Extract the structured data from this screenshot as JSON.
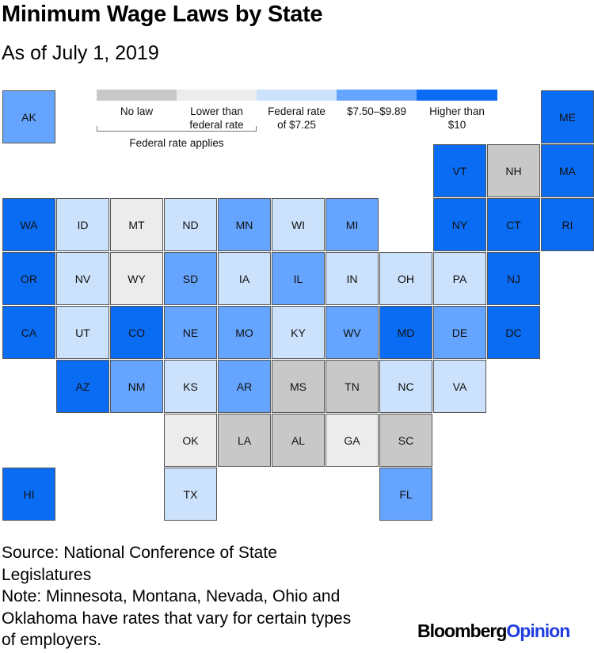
{
  "title": "Minimum Wage Laws by State",
  "subtitle": "As of July 1, 2019",
  "colors": {
    "no_law": "#c8c8c8",
    "lower": "#ececec",
    "federal": "#cce1fb",
    "mid": "#66a5ff",
    "high": "#0a6cf3"
  },
  "chart_data": {
    "type": "tile-map",
    "title": "Minimum Wage Laws by State",
    "subtitle": "As of July 1, 2019",
    "legend": [
      {
        "key": "no_law",
        "label": "No law"
      },
      {
        "key": "lower",
        "label": "Lower than federal rate"
      },
      {
        "key": "federal",
        "label": "Federal rate of $7.25"
      },
      {
        "key": "mid",
        "label": "$7.50–$9.89"
      },
      {
        "key": "high",
        "label": "Higher than $10"
      }
    ],
    "legend_group_label": "Federal rate applies",
    "states": [
      {
        "abbr": "AK",
        "row": 0,
        "col": 0,
        "cat": "mid"
      },
      {
        "abbr": "ME",
        "row": 0,
        "col": 10,
        "cat": "high"
      },
      {
        "abbr": "VT",
        "row": 1,
        "col": 8,
        "cat": "high"
      },
      {
        "abbr": "NH",
        "row": 1,
        "col": 9,
        "cat": "no_law"
      },
      {
        "abbr": "MA",
        "row": 1,
        "col": 10,
        "cat": "high"
      },
      {
        "abbr": "WA",
        "row": 2,
        "col": 0,
        "cat": "high"
      },
      {
        "abbr": "ID",
        "row": 2,
        "col": 1,
        "cat": "federal"
      },
      {
        "abbr": "MT",
        "row": 2,
        "col": 2,
        "cat": "lower"
      },
      {
        "abbr": "ND",
        "row": 2,
        "col": 3,
        "cat": "federal"
      },
      {
        "abbr": "MN",
        "row": 2,
        "col": 4,
        "cat": "mid"
      },
      {
        "abbr": "WI",
        "row": 2,
        "col": 5,
        "cat": "federal"
      },
      {
        "abbr": "MI",
        "row": 2,
        "col": 6,
        "cat": "mid"
      },
      {
        "abbr": "NY",
        "row": 2,
        "col": 8,
        "cat": "high"
      },
      {
        "abbr": "CT",
        "row": 2,
        "col": 9,
        "cat": "high"
      },
      {
        "abbr": "RI",
        "row": 2,
        "col": 10,
        "cat": "high"
      },
      {
        "abbr": "OR",
        "row": 3,
        "col": 0,
        "cat": "high"
      },
      {
        "abbr": "NV",
        "row": 3,
        "col": 1,
        "cat": "federal"
      },
      {
        "abbr": "WY",
        "row": 3,
        "col": 2,
        "cat": "lower"
      },
      {
        "abbr": "SD",
        "row": 3,
        "col": 3,
        "cat": "mid"
      },
      {
        "abbr": "IA",
        "row": 3,
        "col": 4,
        "cat": "federal"
      },
      {
        "abbr": "IL",
        "row": 3,
        "col": 5,
        "cat": "mid"
      },
      {
        "abbr": "IN",
        "row": 3,
        "col": 6,
        "cat": "federal"
      },
      {
        "abbr": "OH",
        "row": 3,
        "col": 7,
        "cat": "federal"
      },
      {
        "abbr": "PA",
        "row": 3,
        "col": 8,
        "cat": "federal"
      },
      {
        "abbr": "NJ",
        "row": 3,
        "col": 9,
        "cat": "high"
      },
      {
        "abbr": "CA",
        "row": 4,
        "col": 0,
        "cat": "high"
      },
      {
        "abbr": "UT",
        "row": 4,
        "col": 1,
        "cat": "federal"
      },
      {
        "abbr": "CO",
        "row": 4,
        "col": 2,
        "cat": "high"
      },
      {
        "abbr": "NE",
        "row": 4,
        "col": 3,
        "cat": "mid"
      },
      {
        "abbr": "MO",
        "row": 4,
        "col": 4,
        "cat": "mid"
      },
      {
        "abbr": "KY",
        "row": 4,
        "col": 5,
        "cat": "federal"
      },
      {
        "abbr": "WV",
        "row": 4,
        "col": 6,
        "cat": "mid"
      },
      {
        "abbr": "MD",
        "row": 4,
        "col": 7,
        "cat": "high"
      },
      {
        "abbr": "DE",
        "row": 4,
        "col": 8,
        "cat": "mid"
      },
      {
        "abbr": "DC",
        "row": 4,
        "col": 9,
        "cat": "high"
      },
      {
        "abbr": "AZ",
        "row": 5,
        "col": 1,
        "cat": "high"
      },
      {
        "abbr": "NM",
        "row": 5,
        "col": 2,
        "cat": "mid"
      },
      {
        "abbr": "KS",
        "row": 5,
        "col": 3,
        "cat": "federal"
      },
      {
        "abbr": "AR",
        "row": 5,
        "col": 4,
        "cat": "mid"
      },
      {
        "abbr": "MS",
        "row": 5,
        "col": 5,
        "cat": "no_law"
      },
      {
        "abbr": "TN",
        "row": 5,
        "col": 6,
        "cat": "no_law"
      },
      {
        "abbr": "NC",
        "row": 5,
        "col": 7,
        "cat": "federal"
      },
      {
        "abbr": "VA",
        "row": 5,
        "col": 8,
        "cat": "federal"
      },
      {
        "abbr": "OK",
        "row": 6,
        "col": 3,
        "cat": "lower"
      },
      {
        "abbr": "LA",
        "row": 6,
        "col": 4,
        "cat": "no_law"
      },
      {
        "abbr": "AL",
        "row": 6,
        "col": 5,
        "cat": "no_law"
      },
      {
        "abbr": "GA",
        "row": 6,
        "col": 6,
        "cat": "lower"
      },
      {
        "abbr": "SC",
        "row": 6,
        "col": 7,
        "cat": "no_law"
      },
      {
        "abbr": "HI",
        "row": 7,
        "col": 0,
        "cat": "high"
      },
      {
        "abbr": "TX",
        "row": 7,
        "col": 3,
        "cat": "federal"
      },
      {
        "abbr": "FL",
        "row": 7,
        "col": 7,
        "cat": "mid"
      }
    ]
  },
  "source_lines": [
    "Source: National Conference of State",
    "Legislatures",
    "Note: Minnesota, Montana, Nevada, Ohio and",
    "Oklahoma have rates that vary for certain types",
    "of employers."
  ],
  "brand": {
    "part1": "Bloomberg",
    "part2": "Opinion"
  }
}
